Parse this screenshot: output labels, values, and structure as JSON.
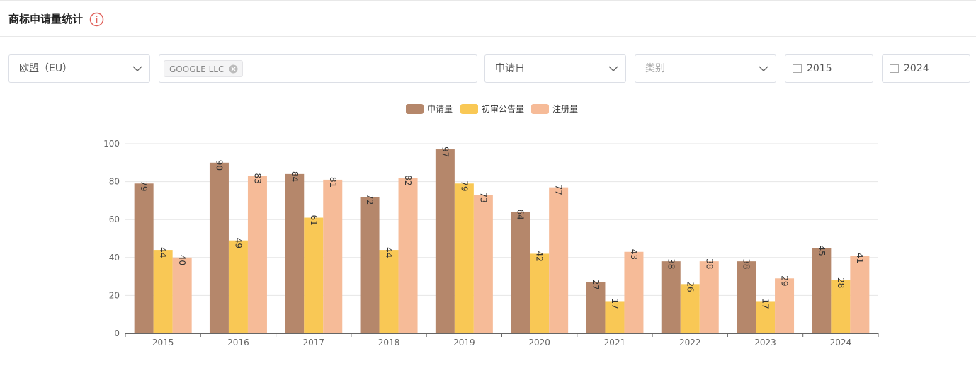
{
  "header": {
    "title": "商标申请量统计"
  },
  "filters": {
    "region": "欧盟（EU）",
    "applicant_tag": "GOOGLE LLC",
    "date_type": "申请日",
    "category_placeholder": "类别",
    "start_year": "2015",
    "end_year": "2024"
  },
  "chart_data": {
    "type": "bar",
    "categories": [
      "2015",
      "2016",
      "2017",
      "2018",
      "2019",
      "2020",
      "2021",
      "2022",
      "2023",
      "2024"
    ],
    "series": [
      {
        "name": "申请量",
        "color": "#b5876b",
        "values": [
          79,
          90,
          84,
          72,
          97,
          64,
          27,
          38,
          38,
          45
        ]
      },
      {
        "name": "初审公告量",
        "color": "#f9c855",
        "values": [
          44,
          49,
          61,
          44,
          79,
          42,
          17,
          26,
          17,
          28
        ]
      },
      {
        "name": "注册量",
        "color": "#f6bb98",
        "values": [
          40,
          83,
          81,
          82,
          73,
          77,
          43,
          38,
          29,
          41
        ]
      }
    ],
    "ylim": [
      0,
      100
    ],
    "yticks": [
      0,
      20,
      40,
      60,
      80,
      100
    ],
    "grid": true,
    "legend": "top"
  }
}
